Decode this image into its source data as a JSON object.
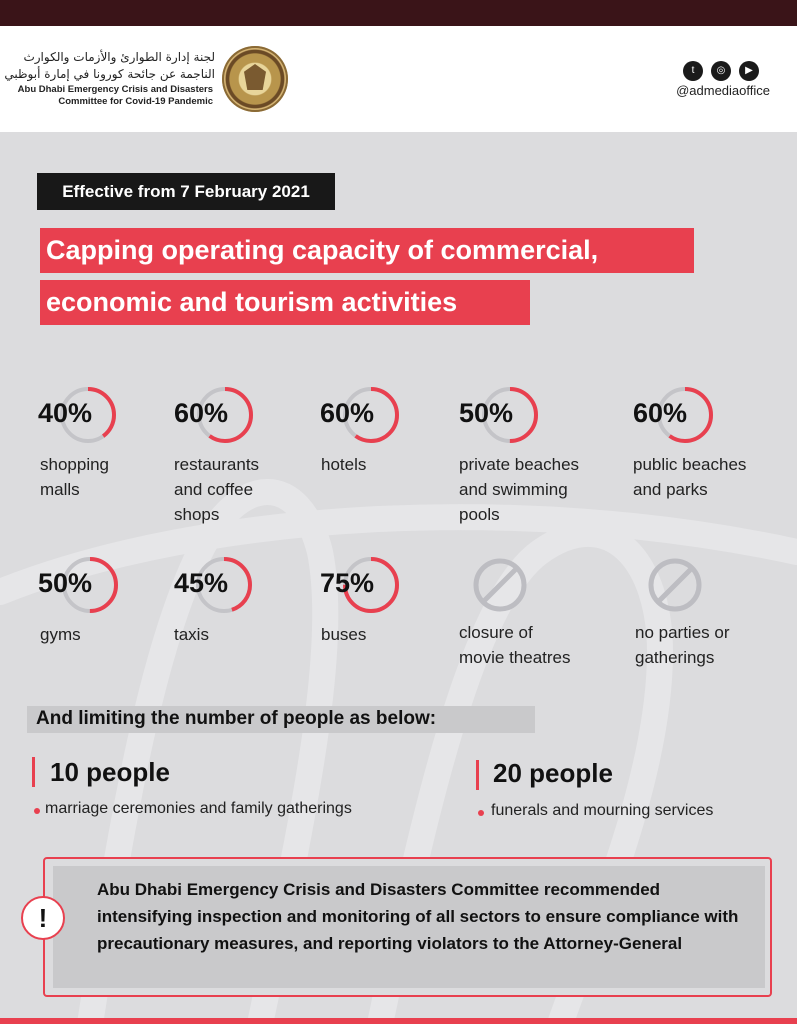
{
  "header": {
    "arabic_line1": "لجنة إدارة الطوارئ والأزمات والكوارث",
    "arabic_line2": "الناجمة عن جائحة كورونا في إمارة أبوظبي",
    "english_line1": "Abu Dhabi Emergency Crisis and Disasters",
    "english_line2": "Committee for Covid-19 Pandemic",
    "social_icons": [
      "twitter-icon",
      "instagram-icon",
      "youtube-icon"
    ],
    "handle": "@admediaoffice"
  },
  "effective": "Effective from 7 February 2021",
  "title_line1": "Capping operating capacity of commercial,",
  "title_line2": "economic and tourism activities",
  "capacities": [
    {
      "percent": "40%",
      "value": 40,
      "label": "shopping\nmalls"
    },
    {
      "percent": "60%",
      "value": 60,
      "label": "restaurants\nand coffee\nshops"
    },
    {
      "percent": "60%",
      "value": 60,
      "label": "hotels"
    },
    {
      "percent": "50%",
      "value": 50,
      "label": "private beaches\nand swimming\npools"
    },
    {
      "percent": "60%",
      "value": 60,
      "label": "public beaches\nand parks"
    },
    {
      "percent": "50%",
      "value": 50,
      "label": "gyms"
    },
    {
      "percent": "45%",
      "value": 45,
      "label": "taxis"
    },
    {
      "percent": "75%",
      "value": 75,
      "label": "buses"
    },
    {
      "icon": "prohibited-icon",
      "label": "closure of\nmovie theatres"
    },
    {
      "icon": "prohibited-icon",
      "label": "no parties or\ngatherings"
    }
  ],
  "limiting_heading": "And limiting the number of people as below:",
  "limits": [
    {
      "count": "10 people",
      "description": "marriage ceremonies and family gatherings"
    },
    {
      "count": "20 people",
      "description": "funerals and mourning services"
    }
  ],
  "note": "Abu Dhabi Emergency Crisis and Disasters Committee recommended intensifying inspection and monitoring of all sectors to ensure compliance with precautionary measures, and reporting violators to the Attorney-General",
  "colors": {
    "accent": "#e8404f",
    "dark": "#3a1418",
    "ring_track": "#c4c4c8",
    "background": "#dcdcde"
  }
}
